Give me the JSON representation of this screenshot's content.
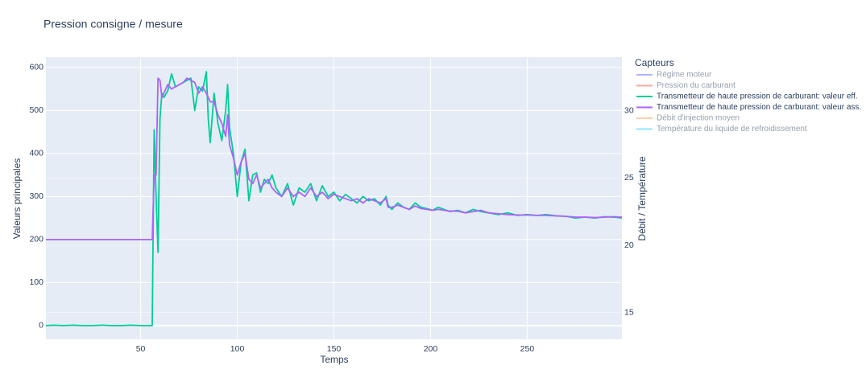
{
  "chart_data": {
    "type": "line",
    "title": "Pression consigne / mesure",
    "x_label": "Temps",
    "y_label": "Valeurs principales",
    "y2_label": "Débit / Température",
    "legend_title": "Capteurs",
    "legend_position": "right",
    "grid": true,
    "x": [
      1,
      5,
      10,
      15,
      20,
      25,
      30,
      35,
      40,
      45,
      50,
      55,
      56,
      57,
      58,
      59,
      60,
      61,
      62,
      64,
      66,
      68,
      70,
      72,
      74,
      76,
      78,
      80,
      82,
      84,
      85,
      86,
      88,
      90,
      92,
      94,
      95,
      96,
      98,
      100,
      102,
      104,
      106,
      108,
      110,
      112,
      114,
      116,
      118,
      120,
      123,
      126,
      129,
      132,
      135,
      138,
      141,
      144,
      147,
      150,
      153,
      156,
      159,
      162,
      165,
      168,
      171,
      174,
      177,
      178,
      180,
      183,
      186,
      189,
      192,
      195,
      198,
      201,
      204,
      207,
      210,
      214,
      218,
      222,
      226,
      230,
      235,
      240,
      245,
      250,
      255,
      260,
      265,
      270,
      275,
      280,
      285,
      290,
      295,
      299
    ],
    "xlim": [
      1,
      299
    ],
    "xticks": [
      50,
      100,
      150,
      200,
      250
    ],
    "ylim": [
      -32,
      624
    ],
    "yticks": [
      0,
      100,
      200,
      300,
      400,
      500,
      600
    ],
    "y2lim": [
      13,
      34
    ],
    "y2ticks": [
      15,
      20,
      25,
      30
    ],
    "series": [
      {
        "name": "Régime moteur",
        "color": "#636efa",
        "visible": "legendonly"
      },
      {
        "name": "Pression du carburant",
        "color": "#ef553b",
        "visible": "legendonly"
      },
      {
        "name": "Transmetteur de haute pression de carburant: valeur eff.",
        "color": "#00cc96",
        "values": [
          0,
          1,
          0,
          1,
          0,
          0,
          1,
          0,
          0,
          1,
          0,
          0,
          0,
          455,
          300,
          170,
          480,
          540,
          530,
          545,
          585,
          555,
          560,
          565,
          570,
          575,
          500,
          555,
          545,
          590,
          480,
          425,
          540,
          470,
          430,
          500,
          560,
          460,
          400,
          300,
          380,
          410,
          290,
          350,
          355,
          310,
          340,
          330,
          350,
          320,
          300,
          330,
          280,
          320,
          310,
          330,
          290,
          325,
          300,
          310,
          290,
          305,
          295,
          285,
          300,
          290,
          295,
          280,
          300,
          280,
          270,
          285,
          275,
          270,
          285,
          275,
          272,
          268,
          275,
          270,
          265,
          268,
          262,
          270,
          265,
          262,
          258,
          262,
          256,
          258,
          256,
          258,
          255,
          254,
          250,
          252,
          250,
          253,
          252,
          250
        ]
      },
      {
        "name": "Transmetteur de haute pression de carburant: valeur ass.",
        "color": "#ab63fa",
        "values": [
          200,
          200,
          200,
          200,
          200,
          200,
          200,
          200,
          200,
          200,
          200,
          200,
          200,
          350,
          350,
          575,
          570,
          530,
          540,
          560,
          550,
          555,
          560,
          565,
          575,
          570,
          565,
          540,
          555,
          540,
          530,
          520,
          520,
          490,
          470,
          440,
          490,
          420,
          390,
          350,
          380,
          400,
          340,
          330,
          350,
          320,
          330,
          340,
          320,
          310,
          300,
          320,
          300,
          310,
          300,
          320,
          300,
          310,
          295,
          305,
          300,
          295,
          290,
          295,
          285,
          295,
          290,
          285,
          295,
          275,
          275,
          280,
          275,
          270,
          278,
          272,
          270,
          268,
          270,
          268,
          266,
          266,
          262,
          265,
          268,
          262,
          260,
          258,
          257,
          257,
          256,
          256,
          255,
          254,
          252,
          252,
          251,
          252,
          253,
          252
        ]
      },
      {
        "name": "Débit d'injection moyen",
        "color": "#ffa15a",
        "visible": "legendonly",
        "axis": "y2"
      },
      {
        "name": "Température du liquide de refroidissement",
        "color": "#19d3f3",
        "visible": "legendonly",
        "axis": "y2"
      }
    ]
  }
}
